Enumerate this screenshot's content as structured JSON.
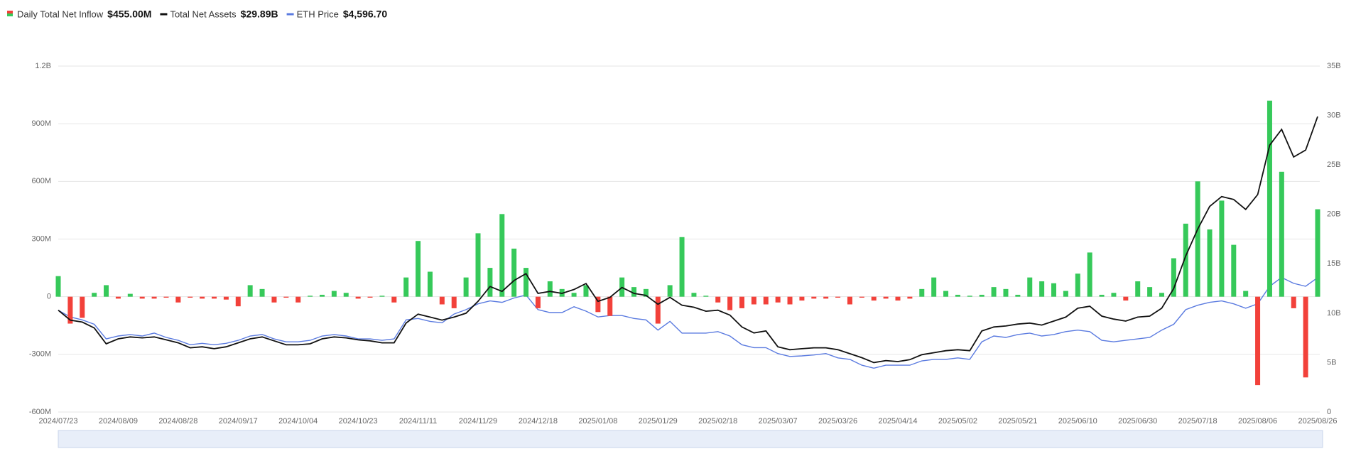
{
  "chart_data": {
    "type": "bar-line",
    "categories": [
      "2024/07/23",
      null,
      null,
      null,
      null,
      "2024/08/09",
      null,
      null,
      null,
      null,
      "2024/08/28",
      null,
      null,
      null,
      null,
      "2024/09/17",
      null,
      null,
      null,
      null,
      "2024/10/04",
      null,
      null,
      null,
      null,
      "2024/10/23",
      null,
      null,
      null,
      null,
      "2024/11/11",
      null,
      null,
      null,
      null,
      "2024/11/29",
      null,
      null,
      null,
      null,
      "2024/12/18",
      null,
      null,
      null,
      null,
      "2025/01/08",
      null,
      null,
      null,
      null,
      "2025/01/29",
      null,
      null,
      null,
      null,
      "2025/02/18",
      null,
      null,
      null,
      null,
      "2025/03/07",
      null,
      null,
      null,
      null,
      "2025/03/26",
      null,
      null,
      null,
      null,
      "2025/04/14",
      null,
      null,
      null,
      null,
      "2025/05/02",
      null,
      null,
      null,
      null,
      "2025/05/21",
      null,
      null,
      null,
      null,
      "2025/06/10",
      null,
      null,
      null,
      null,
      "2025/06/30",
      null,
      null,
      null,
      null,
      "2025/07/18",
      null,
      null,
      null,
      null,
      "2025/08/06",
      null,
      null,
      null,
      null,
      "2025/08/26"
    ],
    "series": [
      {
        "name": "Daily Total Net Inflow",
        "latest_label": "$455.00M",
        "type": "bar",
        "axis": "y",
        "color": "#36c95a",
        "negative_color": "#f2413a",
        "values": [
          107,
          -140,
          -110,
          20,
          60,
          -10,
          15,
          -10,
          -10,
          -5,
          -30,
          -5,
          -10,
          -10,
          -15,
          -50,
          60,
          40,
          -30,
          -5,
          -30,
          5,
          10,
          30,
          20,
          -10,
          -5,
          5,
          -30,
          100,
          290,
          130,
          -40,
          -60,
          100,
          330,
          150,
          430,
          250,
          150,
          -60,
          80,
          40,
          20,
          60,
          -80,
          -100,
          100,
          50,
          40,
          -140,
          60,
          310,
          20,
          5,
          -30,
          -70,
          -60,
          -40,
          -40,
          -30,
          -40,
          -20,
          -10,
          -10,
          -5,
          -40,
          -5,
          -20,
          -10,
          -20,
          -10,
          40,
          100,
          30,
          10,
          5,
          10,
          50,
          40,
          10,
          100,
          80,
          70,
          30,
          120,
          230,
          10,
          20,
          -20,
          80,
          50,
          20,
          200,
          380,
          600,
          350,
          500,
          270,
          30,
          -460,
          1020,
          650,
          -60,
          -420,
          455
        ]
      },
      {
        "name": "Total Net Assets",
        "latest_label": "$29.89B",
        "type": "line",
        "axis": "y2",
        "color": "#111111",
        "values": [
          10.3,
          9.3,
          9.1,
          8.5,
          6.9,
          7.4,
          7.6,
          7.5,
          7.6,
          7.3,
          7.0,
          6.5,
          6.6,
          6.4,
          6.6,
          7.0,
          7.4,
          7.6,
          7.2,
          6.8,
          6.8,
          6.9,
          7.4,
          7.6,
          7.5,
          7.3,
          7.2,
          7.0,
          7.0,
          9.0,
          9.9,
          9.6,
          9.3,
          9.6,
          10.0,
          11.2,
          12.7,
          12.2,
          13.3,
          14.0,
          12.0,
          12.2,
          12.0,
          12.4,
          13.0,
          11.2,
          11.6,
          12.6,
          12.0,
          11.8,
          10.9,
          11.6,
          10.8,
          10.6,
          10.2,
          10.3,
          9.8,
          8.6,
          8.0,
          8.2,
          6.6,
          6.3,
          6.4,
          6.5,
          6.5,
          6.3,
          5.9,
          5.5,
          5.0,
          5.2,
          5.1,
          5.3,
          5.8,
          6.0,
          6.2,
          6.3,
          6.2,
          8.2,
          8.6,
          8.7,
          8.9,
          9.0,
          8.8,
          9.2,
          9.6,
          10.5,
          10.7,
          9.7,
          9.4,
          9.2,
          9.6,
          9.7,
          10.5,
          12.5,
          15.8,
          18.5,
          20.8,
          21.8,
          21.5,
          20.5,
          22,
          27,
          28.6,
          25.8,
          26.5,
          29.89
        ]
      },
      {
        "name": "ETH Price",
        "latest_label": "$4,596.70",
        "type": "line",
        "axis": "y3",
        "color": "#5b7be0",
        "values": [
          3480,
          3250,
          3150,
          3000,
          2500,
          2600,
          2650,
          2600,
          2700,
          2550,
          2450,
          2300,
          2350,
          2300,
          2350,
          2450,
          2600,
          2650,
          2500,
          2400,
          2400,
          2450,
          2600,
          2650,
          2600,
          2500,
          2500,
          2450,
          2500,
          3150,
          3200,
          3100,
          3050,
          3350,
          3500,
          3700,
          3800,
          3750,
          3900,
          4000,
          3500,
          3400,
          3400,
          3600,
          3450,
          3250,
          3300,
          3300,
          3200,
          3150,
          2800,
          3100,
          2700,
          2700,
          2700,
          2750,
          2600,
          2300,
          2200,
          2200,
          2000,
          1900,
          1920,
          1950,
          2000,
          1850,
          1800,
          1600,
          1500,
          1600,
          1600,
          1600,
          1750,
          1800,
          1800,
          1850,
          1800,
          2400,
          2600,
          2550,
          2650,
          2700,
          2600,
          2650,
          2750,
          2800,
          2750,
          2450,
          2400,
          2450,
          2500,
          2550,
          2800,
          3000,
          3500,
          3650,
          3750,
          3800,
          3700,
          3550,
          3700,
          4300,
          4600,
          4400,
          4300,
          4596.7
        ]
      }
    ],
    "ylim": [
      -600,
      1200
    ],
    "yticks": [
      {
        "value": -600,
        "label": "-600M"
      },
      {
        "value": -300,
        "label": "-300M"
      },
      0,
      {
        "value": 300,
        "label": "300M"
      },
      {
        "value": 600,
        "label": "600M"
      },
      {
        "value": 900,
        "label": "900M"
      },
      {
        "value": 1200,
        "label": "1.2B"
      }
    ],
    "y2lim": [
      0,
      35
    ],
    "y2ticks": [
      0,
      {
        "value": 5,
        "label": "5B"
      },
      {
        "value": 10,
        "label": "10B"
      },
      {
        "value": 15,
        "label": "15B"
      },
      {
        "value": 20,
        "label": "20B"
      },
      {
        "value": 25,
        "label": "25B"
      },
      {
        "value": 30,
        "label": "30B"
      },
      {
        "value": 35,
        "label": "35B"
      }
    ],
    "y3lim": [
      0,
      11830
    ],
    "grid": true
  }
}
